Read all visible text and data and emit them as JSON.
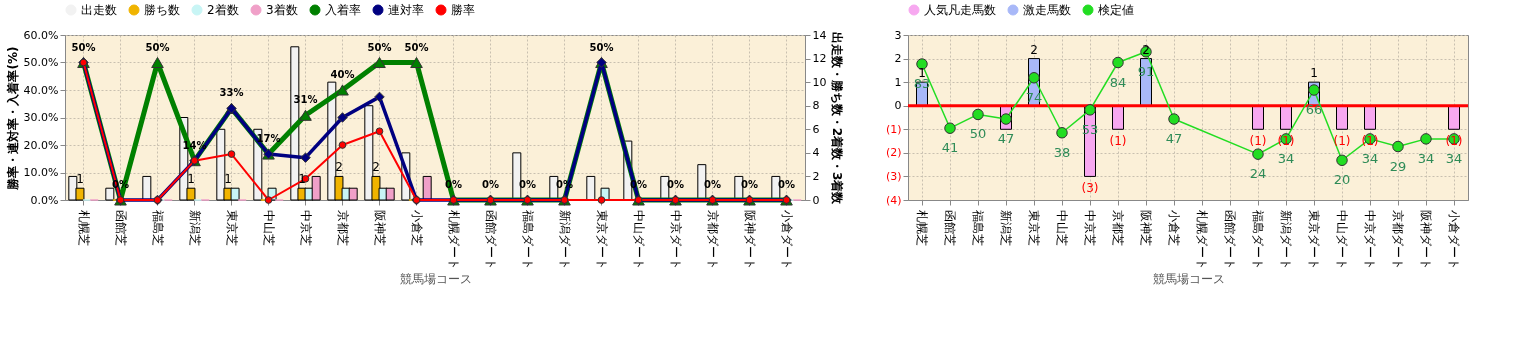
{
  "chart_data": [
    {
      "type": "bar",
      "xlabel": "競馬場コース",
      "ylabel": "勝率・連対率・入着率(%)",
      "y2label": "出走数・勝ち数・2着数・3着数",
      "categories": [
        "札幌芝",
        "函館芝",
        "福島芝",
        "新潟芝",
        "東京芝",
        "中山芝",
        "中京芝",
        "京都芝",
        "阪神芝",
        "小倉芝",
        "札幌ダート",
        "函館ダート",
        "福島ダート",
        "新潟ダート",
        "東京ダート",
        "中山ダート",
        "中京ダート",
        "京都ダート",
        "阪神ダート",
        "小倉ダート"
      ],
      "series": [
        {
          "name": "出走数",
          "axis": "y2",
          "color": "#f2f2f2",
          "values": [
            2,
            1,
            2,
            7,
            6,
            6,
            13,
            10,
            8,
            4,
            0,
            0,
            4,
            2,
            2,
            5,
            2,
            3,
            2,
            2
          ]
        },
        {
          "name": "勝ち数",
          "axis": "y2",
          "color": "#f0b400",
          "values": [
            1,
            0,
            0,
            1,
            1,
            0,
            1,
            2,
            2,
            0,
            0,
            0,
            0,
            0,
            0,
            0,
            0,
            0,
            0,
            0
          ],
          "value_labels": [
            "1",
            null,
            null,
            "1",
            "1",
            null,
            "1",
            "2",
            "2",
            null,
            null,
            null,
            null,
            null,
            null,
            null,
            null,
            null,
            null,
            null
          ]
        },
        {
          "name": "2着数",
          "axis": "y2",
          "color": "#c8f5f5",
          "values": [
            0,
            0,
            0,
            0,
            1,
            1,
            1,
            1,
            1,
            0,
            0,
            0,
            0,
            0,
            1,
            0,
            0,
            0,
            0,
            0
          ]
        },
        {
          "name": "3着数",
          "axis": "y2",
          "color": "#f0a0c8",
          "values": [
            0,
            0,
            0,
            0,
            0,
            0,
            2,
            1,
            1,
            2,
            0,
            0,
            0,
            0,
            0,
            0,
            0,
            0,
            0,
            0
          ]
        },
        {
          "name": "入着率",
          "type": "line",
          "axis": "y",
          "marker": "triangle",
          "color": "#008000",
          "values": [
            50,
            0,
            50,
            14.3,
            33.3,
            16.7,
            30.8,
            40,
            50,
            50,
            0,
            0,
            0,
            0,
            50,
            0,
            0,
            0,
            0,
            0
          ],
          "value_labels": [
            "50%",
            "0%",
            "50%",
            "14%",
            "33%",
            "17%",
            "31%",
            "40%",
            "50%",
            "50%",
            "0%",
            "0%",
            "0%",
            "0%",
            "50%",
            "0%",
            "0%",
            "0%",
            "0%",
            "0%"
          ]
        },
        {
          "name": "連対率",
          "type": "line",
          "axis": "y",
          "marker": "diamond",
          "color": "#000080",
          "values": [
            50,
            0,
            0,
            14.3,
            33.3,
            16.7,
            15.4,
            30,
            37.5,
            0,
            0,
            0,
            0,
            0,
            50,
            0,
            0,
            0,
            0,
            0
          ]
        },
        {
          "name": "勝率",
          "type": "line",
          "axis": "y",
          "marker": "circle",
          "color": "#ff0000",
          "values": [
            50,
            0,
            0,
            14.3,
            16.7,
            0,
            7.7,
            20,
            25,
            0,
            0,
            0,
            0,
            0,
            0,
            0,
            0,
            0,
            0,
            0
          ]
        }
      ],
      "ylim": [
        0,
        60
      ],
      "yticks": [
        {
          "value": 0,
          "label": "0.0%"
        },
        {
          "value": 10,
          "label": "10.0%"
        },
        {
          "value": 20,
          "label": "20.0%"
        },
        {
          "value": 30,
          "label": "30.0%"
        },
        {
          "value": 40,
          "label": "40.0%"
        },
        {
          "value": 50,
          "label": "50.0%"
        },
        {
          "value": 60,
          "label": "60.0%"
        }
      ],
      "y2lim": [
        0,
        14
      ],
      "y2ticks": [
        0,
        2,
        4,
        6,
        8,
        10,
        12,
        14
      ],
      "grid": true,
      "legend": "top"
    },
    {
      "type": "bar",
      "xlabel": "競馬場コース",
      "stacked": true,
      "categories": [
        "札幌芝",
        "函館芝",
        "福島芝",
        "新潟芝",
        "東京芝",
        "中山芝",
        "中京芝",
        "京都芝",
        "阪神芝",
        "小倉芝",
        "札幌ダート",
        "函館ダート",
        "福島ダート",
        "新潟ダート",
        "東京ダート",
        "中山ダート",
        "中京ダート",
        "京都ダート",
        "阪神ダート",
        "小倉ダート"
      ],
      "series": [
        {
          "name": "人気凡走馬数",
          "axis": "y",
          "color": "#f7a8f0",
          "values": [
            0,
            0,
            0,
            -1,
            0,
            0,
            -3,
            -1,
            0,
            0,
            0,
            0,
            -1,
            -1,
            0,
            -1,
            -1,
            0,
            0,
            -1
          ],
          "value_labels": [
            null,
            null,
            null,
            null,
            null,
            null,
            "(3)",
            "(1)",
            null,
            null,
            null,
            null,
            "(1)",
            "(1)",
            null,
            "(1)",
            "(1)",
            null,
            null,
            "(1)"
          ]
        },
        {
          "name": "激走馬数",
          "axis": "y",
          "color": "#a8b8f8",
          "values": [
            1,
            0,
            0,
            0,
            2,
            0,
            0,
            0,
            2,
            0,
            0,
            0,
            0,
            0,
            1,
            0,
            0,
            0,
            0,
            0
          ],
          "value_labels": [
            "1",
            null,
            null,
            null,
            "2",
            null,
            null,
            null,
            "2",
            null,
            null,
            null,
            null,
            null,
            "1",
            null,
            null,
            null,
            null,
            null
          ]
        },
        {
          "name": "検定値",
          "type": "line",
          "axis": "y2",
          "marker": "circle",
          "color": "#22dd22",
          "values": [
            83,
            41,
            50,
            47,
            74,
            38,
            53,
            84,
            91,
            47,
            null,
            null,
            24,
            34,
            66,
            20,
            34,
            29,
            34,
            34
          ],
          "value_labels": [
            "83",
            "41",
            "50",
            "47",
            "74",
            "38",
            "53",
            "84",
            "91",
            "47",
            null,
            null,
            "24",
            "34",
            "66",
            "20",
            "34",
            "29",
            "34",
            "34"
          ]
        }
      ],
      "ylim": [
        -4,
        3
      ],
      "yticks": [
        {
          "value": -4,
          "label": "(4)"
        },
        {
          "value": -3,
          "label": "(3)"
        },
        {
          "value": -2,
          "label": "(2)"
        },
        {
          "value": -1,
          "label": "(1)"
        },
        0,
        1,
        2,
        3
      ],
      "y2lim": [
        -6,
        102
      ],
      "ref_lines": [
        {
          "axis": "y",
          "value": 0,
          "color": "#ff0000"
        }
      ],
      "grid": true,
      "legend": "top"
    }
  ]
}
